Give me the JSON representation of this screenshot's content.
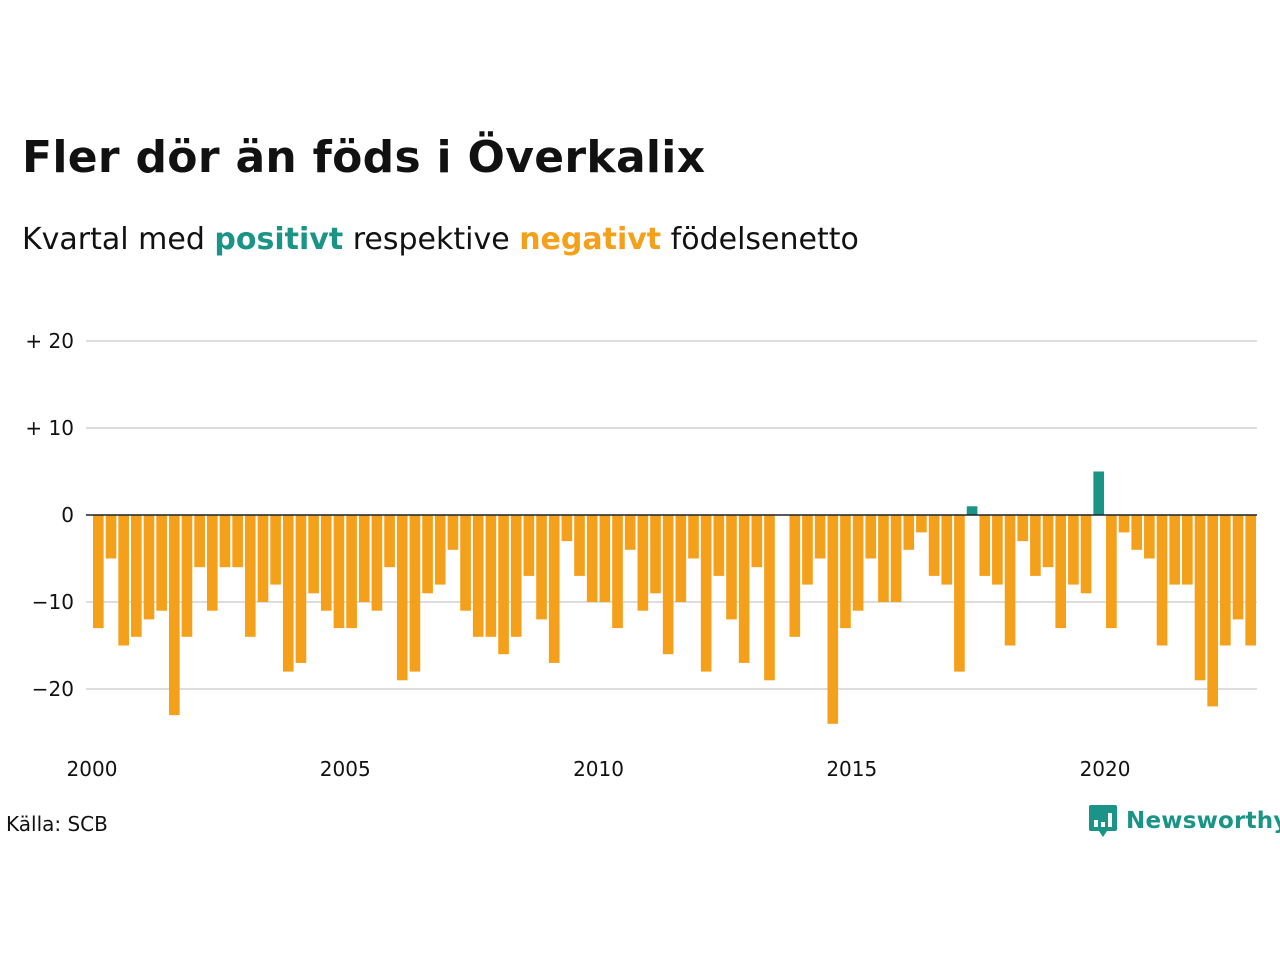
{
  "title": "Fler dör än föds i Överkalix",
  "subtitle": {
    "prefix": "Kvartal med ",
    "positive_word": "positivt",
    "middle": " respektive ",
    "negative_word": "negativt",
    "suffix": " födelsenetto"
  },
  "source": "Källa: SCB",
  "logo": {
    "text": "Newsworthy",
    "icon": "newsworthy-logo-icon"
  },
  "colors": {
    "positive": "#1a9486",
    "negative": "#f5a01a",
    "grid": "#dddddd",
    "text": "#111111"
  },
  "chart_data": {
    "type": "bar",
    "x_start": "2000 Q1",
    "x_end": "2022 Q4",
    "x_ticks": [
      {
        "year": 2000,
        "label": "2000"
      },
      {
        "year": 2005,
        "label": "2005"
      },
      {
        "year": 2010,
        "label": "2010"
      },
      {
        "year": 2015,
        "label": "2015"
      },
      {
        "year": 2020,
        "label": "2020"
      }
    ],
    "y_ticks": [
      {
        "value": 20,
        "label": "+ 20"
      },
      {
        "value": 10,
        "label": "+ 10"
      },
      {
        "value": 0,
        "label": "0"
      },
      {
        "value": -10,
        "label": "−10"
      },
      {
        "value": -20,
        "label": "−20"
      }
    ],
    "ylim": [
      -26,
      20
    ],
    "grid": true,
    "values": [
      -13,
      -5,
      -15,
      -14,
      -12,
      -11,
      -23,
      -14,
      -6,
      -11,
      -6,
      -6,
      -14,
      -10,
      -8,
      -18,
      -17,
      -9,
      -11,
      -13,
      -13,
      -10,
      -11,
      -6,
      -19,
      -18,
      -9,
      -8,
      -4,
      -11,
      -14,
      -14,
      -16,
      -14,
      -7,
      -12,
      -17,
      -3,
      -7,
      -10,
      -10,
      -13,
      -4,
      -11,
      -9,
      -16,
      -10,
      -5,
      -18,
      -7,
      -12,
      -17,
      -6,
      -19,
      0,
      -14,
      -8,
      -5,
      -24,
      -13,
      -11,
      -5,
      -10,
      -10,
      -4,
      -2,
      -7,
      -8,
      -18,
      1,
      -7,
      -8,
      -15,
      -3,
      -7,
      -6,
      -13,
      -8,
      -9,
      5,
      -13,
      -2,
      -4,
      -5,
      -15,
      -8,
      -8,
      -19,
      -22,
      -15,
      -12,
      -15
    ]
  }
}
